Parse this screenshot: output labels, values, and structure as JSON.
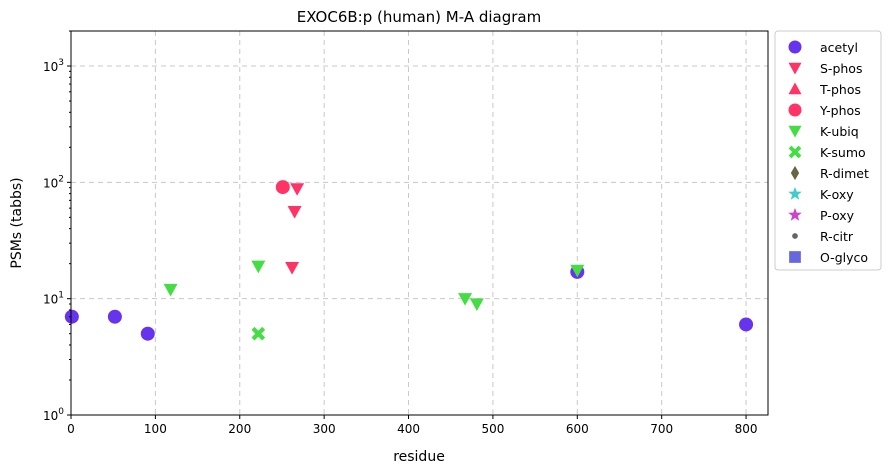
{
  "chart_data": {
    "type": "scatter",
    "title": "EXOC6B:p (human) M-A diagram",
    "xlabel": "residue",
    "ylabel": "PSMs (tabbs)",
    "xlim": [
      0,
      826
    ],
    "ylim": [
      1,
      2000
    ],
    "y_scale": "log",
    "x_ticks": [
      0,
      100,
      200,
      300,
      400,
      500,
      600,
      700,
      800
    ],
    "x_tick_labels": [
      "0",
      "100",
      "200",
      "300",
      "400",
      "500",
      "600",
      "700",
      "800"
    ],
    "y_ticks": [
      1,
      10,
      100,
      1000
    ],
    "y_tick_labels": [
      "10",
      "10",
      "10",
      "10"
    ],
    "y_tick_exponents": [
      "0",
      "1",
      "2",
      "3"
    ],
    "grid": true,
    "legend_position": "outside-right",
    "series": [
      {
        "name": "acetyl",
        "marker": "circle",
        "color": "#6633ee",
        "points": [
          [
            1,
            7
          ],
          [
            52,
            7
          ],
          [
            91,
            5
          ],
          [
            600,
            17
          ],
          [
            800,
            6
          ]
        ]
      },
      {
        "name": "S-phos",
        "marker": "triangle-down",
        "color": "#ff3366",
        "points": [
          [
            268,
            88
          ],
          [
            265,
            56
          ],
          [
            262,
            18.5
          ]
        ]
      },
      {
        "name": "T-phos",
        "marker": "triangle-up",
        "color": "#ff3366",
        "points": []
      },
      {
        "name": "Y-phos",
        "marker": "circle",
        "color": "#ff3366",
        "points": [
          [
            251,
            91
          ]
        ]
      },
      {
        "name": "K-ubiq",
        "marker": "triangle-down",
        "color": "#44dd44",
        "points": [
          [
            118,
            12
          ],
          [
            222,
            19
          ],
          [
            467,
            10
          ],
          [
            481,
            9
          ],
          [
            600,
            17.5
          ]
        ]
      },
      {
        "name": "K-sumo",
        "marker": "x-filled",
        "color": "#44dd44",
        "points": [
          [
            222,
            5
          ]
        ]
      },
      {
        "name": "R-dimet",
        "marker": "thin-diamond",
        "color": "#666644",
        "points": []
      },
      {
        "name": "K-oxy",
        "marker": "star",
        "color": "#44cccc",
        "points": []
      },
      {
        "name": "P-oxy",
        "marker": "star",
        "color": "#cc44cc",
        "points": []
      },
      {
        "name": "R-citr",
        "marker": "small-circle",
        "color": "#666666",
        "points": []
      },
      {
        "name": "O-glyco",
        "marker": "square",
        "color": "#6666dd",
        "points": []
      }
    ]
  }
}
